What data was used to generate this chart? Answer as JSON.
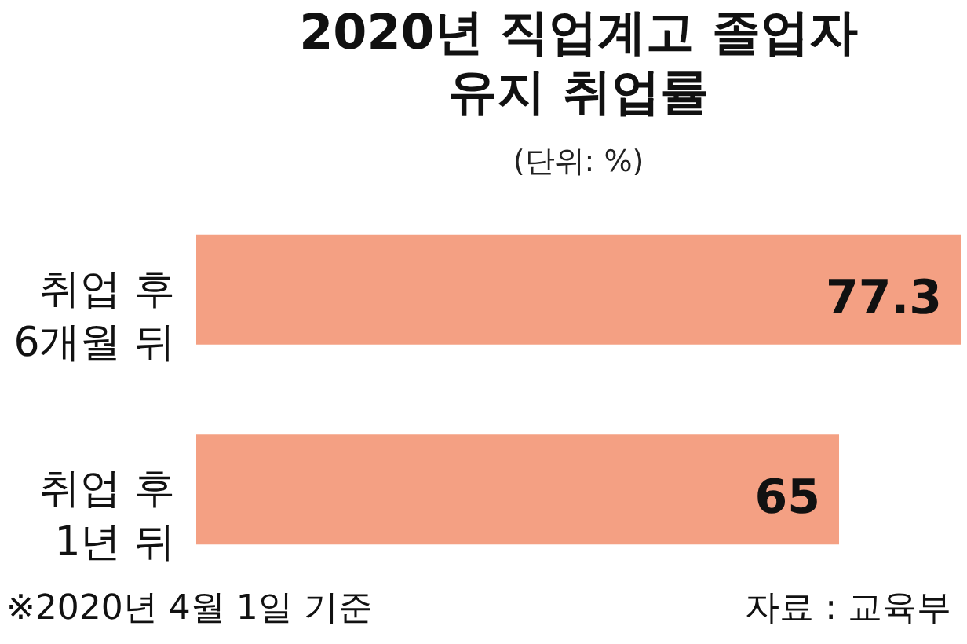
{
  "chart_data": {
    "type": "bar",
    "orientation": "horizontal",
    "title": "2020년 직업계고 졸업자\n유지 취업률",
    "subtitle": "(단위: %)",
    "categories": [
      "취업 후\n6개월 뒤",
      "취업 후\n1년 뒤"
    ],
    "values": [
      77.3,
      65
    ],
    "color": "#f4a083",
    "data_labels": true,
    "tick_labels": "y",
    "annotations": [
      "※2020년 4월 1일 기준",
      "자료 : 교육부"
    ]
  }
}
